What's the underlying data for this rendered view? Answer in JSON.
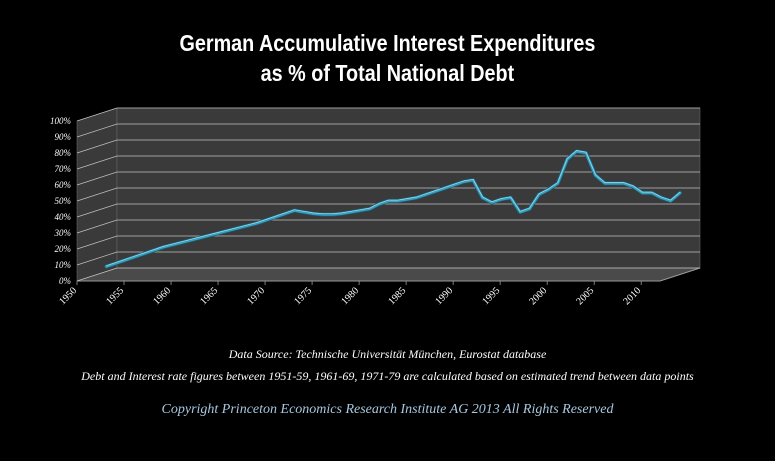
{
  "title_line1": "German Accumulative Interest Expenditures",
  "title_line2": "as % of Total National Debt",
  "source_text": "Data Source:  Technische Universität München, Eurostat database",
  "footnote_text": "Debt and Interest rate figures between 1951-59, 1961-69, 1971-79 are calculated based on estimated trend between data points",
  "copyright_text": "Copyright Princeton Economics Research Institute AG 2013 All Rights Reserved",
  "colors": {
    "line": "#3aa0c0",
    "line_highlight": "#9fdcec",
    "grid": "#bfbfbf",
    "wall": "#3a3a3a",
    "floor": "#4a4a4a",
    "copyright": "#a8c8e0"
  },
  "chart_data": {
    "type": "line",
    "three_d": true,
    "title": "German Accumulative Interest Expenditures as % of Total National Debt",
    "xlabel": "",
    "ylabel": "",
    "ylim": [
      0,
      100
    ],
    "xlim": [
      1950,
      2012
    ],
    "grid": true,
    "legend": "none",
    "yticks": [
      "0%",
      "10%",
      "20%",
      "30%",
      "40%",
      "50%",
      "60%",
      "70%",
      "80%",
      "90%",
      "100%"
    ],
    "ytick_values": [
      0,
      10,
      20,
      30,
      40,
      50,
      60,
      70,
      80,
      90,
      100
    ],
    "xticks": [
      "1950",
      "1955",
      "1960",
      "1965",
      "1970",
      "1975",
      "1980",
      "1985",
      "1990",
      "1995",
      "2000",
      "2005",
      "2010"
    ],
    "xtick_values": [
      1950,
      1955,
      1960,
      1965,
      1970,
      1975,
      1980,
      1985,
      1990,
      1995,
      2000,
      2005,
      2010
    ],
    "series": [
      {
        "x": [
          1951,
          1953,
          1955,
          1957,
          1959,
          1961,
          1963,
          1965,
          1967,
          1969,
          1971,
          1972,
          1973,
          1974,
          1975,
          1976,
          1977,
          1978,
          1979,
          1980,
          1981,
          1982,
          1983,
          1984,
          1985,
          1986,
          1987,
          1988,
          1989,
          1990,
          1991,
          1992,
          1993,
          1994,
          1995,
          1996,
          1997,
          1998,
          1999,
          2000,
          2001,
          2002,
          2003,
          2004,
          2005,
          2006,
          2007,
          2008,
          2009,
          2010,
          2011,
          2012
        ],
        "values": [
          5,
          9,
          13,
          17,
          20,
          23,
          26,
          29,
          32,
          36,
          40,
          39,
          38,
          37.5,
          37.5,
          38,
          39,
          40,
          41,
          44,
          46,
          46,
          47,
          48,
          50,
          52,
          54,
          56,
          58,
          59,
          48,
          45,
          47,
          48,
          39,
          41,
          50,
          53,
          57,
          72,
          77,
          76,
          62,
          57,
          57,
          57,
          55,
          51,
          51,
          48,
          46,
          51
        ]
      }
    ]
  }
}
